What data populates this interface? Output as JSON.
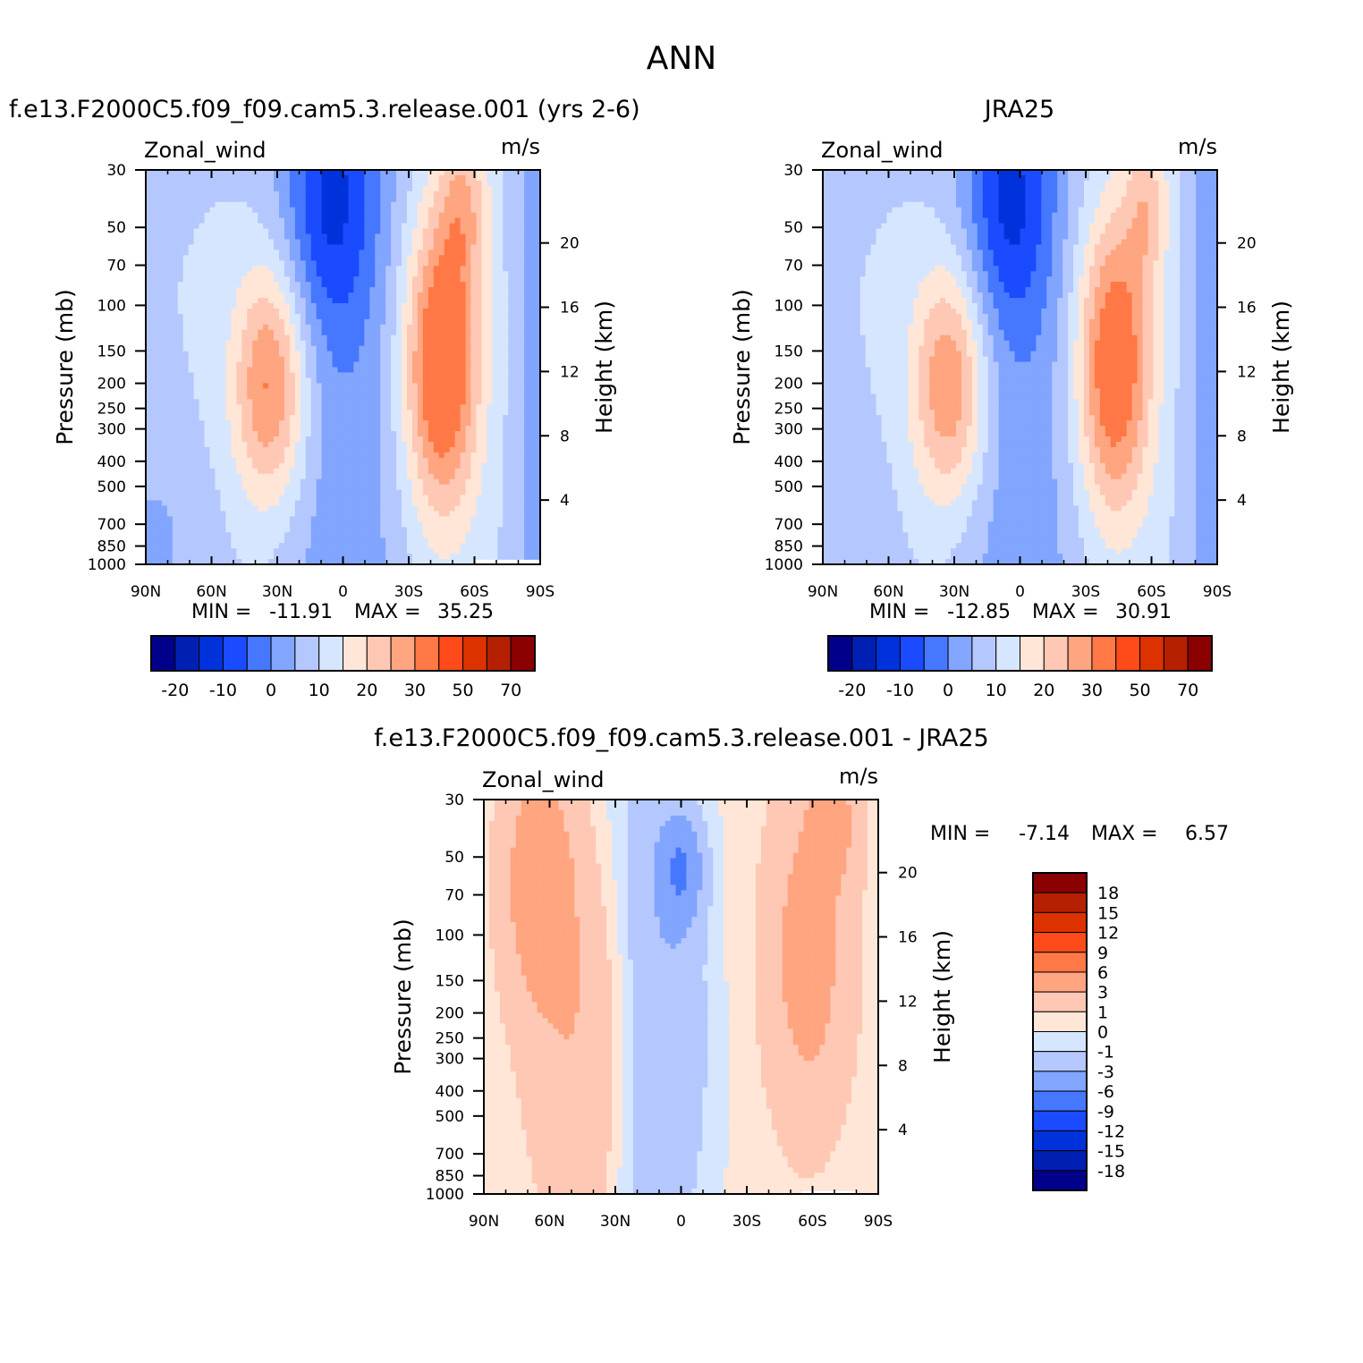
{
  "title": "ANN",
  "colors": {
    "full": [
      "#00008b",
      "#0020b4",
      "#0032dc",
      "#1a4bff",
      "#4678ff",
      "#82a5ff",
      "#b4c8ff",
      "#d7e6ff",
      "#ffe6d7",
      "#ffc8b4",
      "#ffa580",
      "#ff7846",
      "#ff4b1a",
      "#dc3200",
      "#b42000",
      "#8b0000"
    ],
    "diff": [
      "#00008b",
      "#0020b4",
      "#0032dc",
      "#1a4bff",
      "#4678ff",
      "#82a5ff",
      "#b4c8ff",
      "#d7e6ff",
      "#ffe6d7",
      "#ffc8b4",
      "#ffa580",
      "#ff7846",
      "#ff4b1a",
      "#dc3200",
      "#b42000",
      "#8b0000"
    ]
  },
  "chart_data": [
    {
      "type": "heatmap",
      "title": "f.e13.F2000C5.f09_f09.cam5.3.release.001 (yrs 2-6)",
      "variable": "Zonal_wind",
      "units": "m/s",
      "ylabel": "Pressure (mb)",
      "ylabel_right": "Height (km)",
      "x_ticks": [
        "90N",
        "60N",
        "30N",
        "0",
        "30S",
        "60S",
        "90S"
      ],
      "y_ticks": [
        "30",
        "50",
        "70",
        "100",
        "150",
        "200",
        "250",
        "300",
        "400",
        "500",
        "700",
        "850",
        "1000"
      ],
      "height_ticks": [
        "20",
        "16",
        "12",
        "8",
        "4"
      ],
      "xlim": [
        90,
        -90
      ],
      "ylim": [
        1000,
        30
      ],
      "y_scale": "log",
      "min_label": "MIN =",
      "min": "-11.91",
      "max_label": "MAX =",
      "max": "35.25",
      "colorbar_labels": [
        "-20",
        "-10",
        "0",
        "10",
        "20",
        "30",
        "50",
        "70"
      ],
      "levels": [
        -25,
        -20,
        -15,
        -10,
        -5,
        0,
        5,
        10,
        15,
        20,
        25,
        30,
        40,
        50,
        60,
        70,
        80
      ]
    },
    {
      "type": "heatmap",
      "title": "JRA25",
      "variable": "Zonal_wind",
      "units": "m/s",
      "ylabel": "Pressure (mb)",
      "ylabel_right": "Height (km)",
      "x_ticks": [
        "90N",
        "60N",
        "30N",
        "0",
        "30S",
        "60S",
        "90S"
      ],
      "y_ticks": [
        "30",
        "50",
        "70",
        "100",
        "150",
        "200",
        "250",
        "300",
        "400",
        "500",
        "700",
        "850",
        "1000"
      ],
      "height_ticks": [
        "20",
        "16",
        "12",
        "8",
        "4"
      ],
      "xlim": [
        90,
        -90
      ],
      "ylim": [
        1000,
        30
      ],
      "y_scale": "log",
      "min_label": "MIN =",
      "min": "-12.85",
      "max_label": "MAX =",
      "max": "30.91",
      "colorbar_labels": [
        "-20",
        "-10",
        "0",
        "10",
        "20",
        "30",
        "50",
        "70"
      ],
      "levels": [
        -25,
        -20,
        -15,
        -10,
        -5,
        0,
        5,
        10,
        15,
        20,
        25,
        30,
        40,
        50,
        60,
        70,
        80
      ]
    },
    {
      "type": "heatmap",
      "title": "f.e13.F2000C5.f09_f09.cam5.3.release.001 - JRA25",
      "variable": "Zonal_wind",
      "units": "m/s",
      "ylabel": "Pressure (mb)",
      "ylabel_right": "Height (km)",
      "x_ticks": [
        "90N",
        "60N",
        "30N",
        "0",
        "30S",
        "60S",
        "90S"
      ],
      "y_ticks": [
        "30",
        "50",
        "70",
        "100",
        "150",
        "200",
        "250",
        "300",
        "400",
        "500",
        "700",
        "850",
        "1000"
      ],
      "height_ticks": [
        "20",
        "16",
        "12",
        "8",
        "4"
      ],
      "xlim": [
        90,
        -90
      ],
      "ylim": [
        1000,
        30
      ],
      "y_scale": "log",
      "min_label": "MIN =",
      "min": "-7.14",
      "max_label": "MAX =",
      "max": "6.57",
      "colorbar_labels": [
        "18",
        "15",
        "12",
        "9",
        "6",
        "3",
        "1",
        "0",
        "-1",
        "-3",
        "-6",
        "-9",
        "-12",
        "-15",
        "-18"
      ],
      "levels": [
        -21,
        -18,
        -15,
        -12,
        -9,
        -6,
        -3,
        -1,
        0,
        1,
        3,
        6,
        9,
        12,
        15,
        18,
        21
      ]
    }
  ]
}
